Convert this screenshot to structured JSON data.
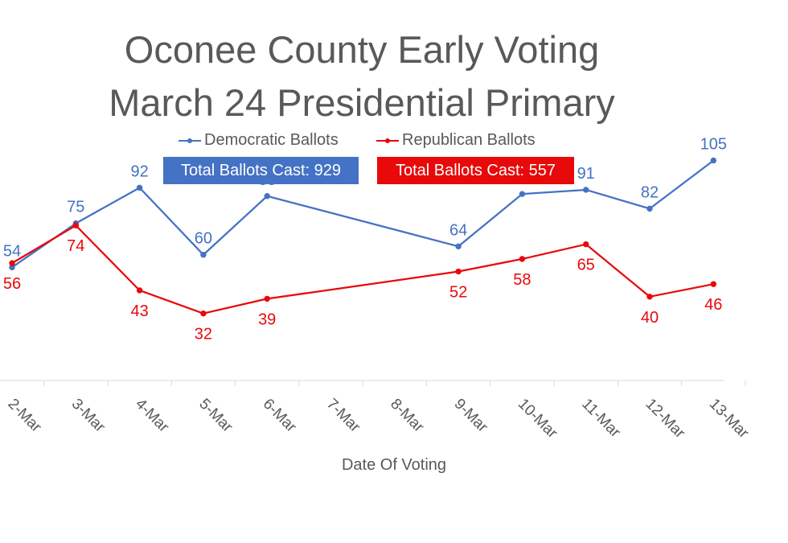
{
  "colors": {
    "democratic": "#4472C4",
    "republican": "#E8090A",
    "text": "#595959",
    "axis": "#d9d9d9"
  },
  "title": {
    "line1": "Oconee County Early Voting",
    "line2": "March 24 Presidential Primary"
  },
  "legend": {
    "democratic": "Democratic Ballots",
    "republican": "Republican Ballots"
  },
  "totals": {
    "democratic": "Total Ballots Cast: 929",
    "republican": "Total Ballots Cast: 557"
  },
  "chart_data": {
    "type": "line",
    "xlabel": "Date Of Voting",
    "ylabel": "",
    "legend_position": "top",
    "grid": false,
    "categories": [
      "2-Mar",
      "3-Mar",
      "4-Mar",
      "5-Mar",
      "6-Mar",
      "7-Mar",
      "8-Mar",
      "9-Mar",
      "10-Mar",
      "11-Mar",
      "12-Mar",
      "13-Mar"
    ],
    "ylim": [
      0,
      220
    ],
    "series": [
      {
        "name": "Democratic Ballots",
        "color": "#4472C4",
        "values": [
          54,
          75,
          92,
          60,
          88,
          null,
          null,
          64,
          89,
          91,
          82,
          105
        ]
      },
      {
        "name": "Republican Ballots",
        "color": "#E8090A",
        "values": [
          56,
          74,
          43,
          32,
          39,
          null,
          null,
          52,
          58,
          65,
          40,
          46
        ]
      }
    ]
  }
}
